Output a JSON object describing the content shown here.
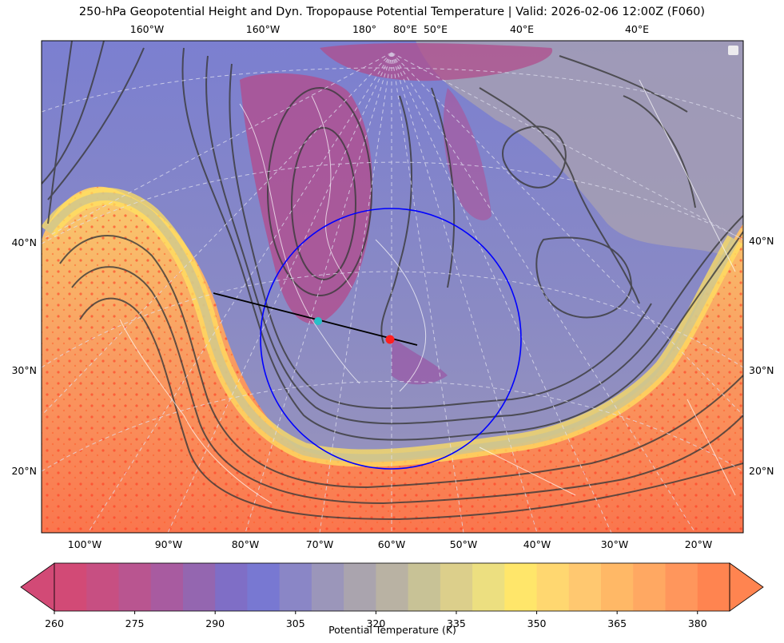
{
  "title": "250-hPa Geopotential Height and Dyn. Tropopause Potential Temperature   |  Valid: 2026-02-06 12:00Z (F060)",
  "top_lon_labels": [
    "160°W",
    "160°W",
    "180°",
    "80°E",
    "50°E",
    "40°E",
    "40°E"
  ],
  "bottom_lon_labels": [
    "100°W",
    "90°W",
    "80°W",
    "70°W",
    "60°W",
    "50°W",
    "40°W",
    "30°W",
    "20°W"
  ],
  "left_lat_labels": [
    "40°N",
    "30°N",
    "20°N"
  ],
  "right_lat_labels": [
    "40°N",
    "30°N",
    "20°N"
  ],
  "colorbar": {
    "label": "Potential Temperature (K)",
    "ticks": [
      "260",
      "275",
      "290",
      "305",
      "320",
      "335",
      "350",
      "365",
      "380"
    ],
    "colors": [
      "#d24a76",
      "#c74f82",
      "#b95590",
      "#a85ba0",
      "#9466b0",
      "#7f6ec6",
      "#7878d2",
      "#8a86c6",
      "#9b96ba",
      "#aaa4ae",
      "#b9b2a3",
      "#c8c296",
      "#dccf8b",
      "#ecdf80",
      "#ffe66a",
      "#ffd770",
      "#ffc870",
      "#ffb866",
      "#ffa862",
      "#ff965c",
      "#ff8450"
    ],
    "extend": "both"
  },
  "map": {
    "field": "Dynamic tropopause potential temperature (K)",
    "contours": "250-hPa geopotential height",
    "markers": [
      {
        "name": "cyan-point",
        "color": "#27c0c8"
      },
      {
        "name": "red-point",
        "color": "#ff1f1f"
      }
    ],
    "circle_color": "#0000ff"
  }
}
